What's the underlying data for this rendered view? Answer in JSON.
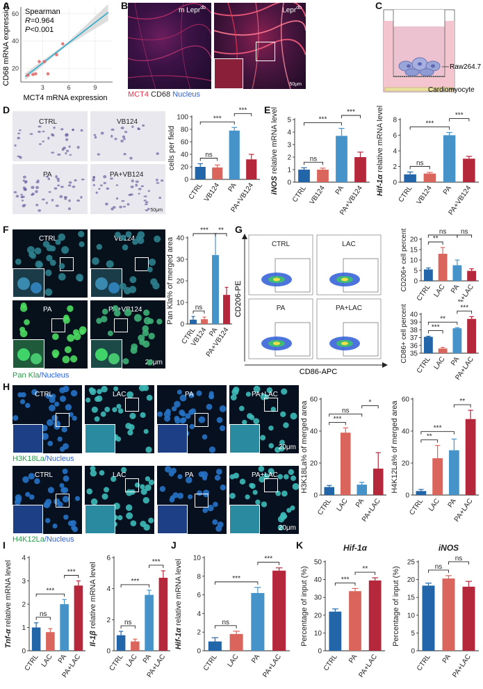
{
  "panels": {
    "A": {
      "letter": "A",
      "stat_name": "Spearman",
      "r_prefix": "R",
      "r_value": "=0.964",
      "p_prefix": "P",
      "p_value": "<0.001",
      "xlabel": "MCT4 mRNA expression",
      "ylabel": "CD68 mRNA expression"
    },
    "B": {
      "letter": "B",
      "left_label": "m Lepr",
      "left_sup": "db",
      "right_label": "Lepr",
      "right_sup": "db",
      "legend_red": "MCT4",
      "legend_white": "CD68",
      "legend_blue": "Nucleus",
      "scale": "50μm"
    },
    "C": {
      "letter": "C",
      "label_top": "Raw264.7",
      "label_bottom": "Cardiomyocyte"
    },
    "D": {
      "letter": "D",
      "img_labels": [
        "CTRL",
        "VB124",
        "PA",
        "PA+VB124"
      ],
      "scale": "50μm"
    },
    "E": {
      "letter": "E"
    },
    "F": {
      "letter": "F",
      "img_labels": [
        "CTRL",
        "VB124",
        "PA",
        "PA+VB124"
      ],
      "scale": "20μm",
      "legend_green": "Pan Kla",
      "legend_blue": "/Nucleus"
    },
    "G": {
      "letter": "G",
      "img_labels": [
        "CTRL",
        "LAC",
        "PA",
        "PA+LAC"
      ],
      "yaxis": "CD206-PE",
      "xaxis": "CD86-APC"
    },
    "H": {
      "letter": "H",
      "img_labels": [
        "CTRL",
        "LAC",
        "PA",
        "PA+LAC"
      ],
      "scale": "20μm",
      "legend1_green": "H3K18La",
      "legend1_blue": "/Nucleus",
      "legend2_green": "H4K12La",
      "legend2_blue": "/Nucleus"
    },
    "I": {
      "letter": "I"
    },
    "J": {
      "letter": "J"
    },
    "K": {
      "letter": "K"
    }
  },
  "colors": {
    "ctrl": "#2265a8",
    "treat1": "#d9655c",
    "drug": "#4593c9",
    "combo": "#b5273a",
    "fit": "#2aa9c9",
    "points": "#e06666",
    "green_stain": "#3fd36a",
    "nucleus": "#2a5fd8",
    "red_stain": "#e2334b"
  },
  "chart_data": [
    {
      "id": "A",
      "type": "scatter",
      "title": "",
      "xlabel": "MCT4 mRNA expression",
      "ylabel": "CD68 mRNA expression",
      "xticks": [
        "3",
        "6",
        "9"
      ],
      "yticks": [
        "20",
        "40",
        "60"
      ],
      "xlim": [
        0.5,
        11
      ],
      "ylim": [
        10,
        65
      ],
      "points": [
        {
          "x": 1.3,
          "y": 15
        },
        {
          "x": 1.9,
          "y": 15.5
        },
        {
          "x": 2.2,
          "y": 16
        },
        {
          "x": 2.6,
          "y": 25
        },
        {
          "x": 3.2,
          "y": 25
        },
        {
          "x": 3.6,
          "y": 16
        },
        {
          "x": 4.6,
          "y": 30
        },
        {
          "x": 5.3,
          "y": 38
        }
      ],
      "fit": [
        [
          1.0,
          14
        ],
        [
          10.5,
          61
        ]
      ],
      "annotations": [
        "Spearman",
        "R=0.964",
        "P<0.001"
      ]
    },
    {
      "id": "D",
      "type": "bar",
      "ylabel": "cells per field",
      "ylim": [
        0,
        100
      ],
      "yticks": [
        "0",
        "20",
        "40",
        "60",
        "80",
        "100"
      ],
      "categories": [
        "CTRL",
        "VB124",
        "PA",
        "PA+VB124"
      ],
      "values": [
        20,
        19,
        78,
        32
      ],
      "errors": [
        5,
        4,
        5,
        8
      ],
      "colors": [
        "#2265a8",
        "#d9655c",
        "#4593c9",
        "#b5273a"
      ],
      "significance": [
        {
          "a": 0,
          "b": 1,
          "label": "ns"
        },
        {
          "a": 0,
          "b": 2,
          "label": "***"
        },
        {
          "a": 2,
          "b": 3,
          "label": "***"
        }
      ]
    },
    {
      "id": "E1",
      "type": "bar",
      "ylabel": "iNOS relative mRNA level",
      "ylabel_italic": "iNOS",
      "ylabel_rest": " relative mRNA level",
      "ylim": [
        0,
        5
      ],
      "yticks": [
        "0",
        "1",
        "2",
        "3",
        "4",
        "5"
      ],
      "categories": [
        "CTRL",
        "VB124",
        "PA",
        "PA+VB124"
      ],
      "values": [
        1.0,
        1.0,
        3.7,
        2.0
      ],
      "errors": [
        0.15,
        0.12,
        0.6,
        0.4
      ],
      "colors": [
        "#2265a8",
        "#d9655c",
        "#4593c9",
        "#b5273a"
      ],
      "significance": [
        {
          "a": 0,
          "b": 1,
          "label": "ns"
        },
        {
          "a": 0,
          "b": 2,
          "label": "***"
        },
        {
          "a": 2,
          "b": 3,
          "label": "***"
        }
      ]
    },
    {
      "id": "E2",
      "type": "bar",
      "ylabel": "Hif-1α relative mRNA level",
      "ylabel_italic": "Hif-1α",
      "ylabel_rest": "  relative mRNA level",
      "ylim": [
        0,
        8
      ],
      "yticks": [
        "0",
        "2",
        "4",
        "6",
        "8"
      ],
      "categories": [
        "CTRL",
        "VB124",
        "PA",
        "PA+VB124"
      ],
      "values": [
        1.0,
        1.1,
        6.0,
        3.0
      ],
      "errors": [
        0.3,
        0.15,
        0.35,
        0.3
      ],
      "colors": [
        "#2265a8",
        "#d9655c",
        "#4593c9",
        "#b5273a"
      ],
      "significance": [
        {
          "a": 0,
          "b": 1,
          "label": "ns"
        },
        {
          "a": 0,
          "b": 2,
          "label": "***"
        },
        {
          "a": 2,
          "b": 3,
          "label": "***"
        }
      ]
    },
    {
      "id": "F",
      "type": "bar",
      "ylabel": "Pan Kla% of merged area",
      "ylim": [
        0,
        40
      ],
      "yticks": [
        "0",
        "10",
        "20",
        "30",
        "40"
      ],
      "categories": [
        "CTRL",
        "VB124",
        "PA",
        "PA+VB124"
      ],
      "values": [
        2.0,
        2.2,
        32,
        13.5
      ],
      "errors": [
        1.5,
        1.0,
        10,
        3.5
      ],
      "colors": [
        "#2265a8",
        "#d9655c",
        "#4593c9",
        "#b5273a"
      ],
      "significance": [
        {
          "a": 0,
          "b": 1,
          "label": "ns"
        },
        {
          "a": 0,
          "b": 2,
          "label": "***"
        },
        {
          "a": 2,
          "b": 3,
          "label": "**"
        }
      ]
    },
    {
      "id": "G1",
      "type": "bar",
      "ylabel": "CD206+ cell percent",
      "ylim": [
        0,
        20
      ],
      "yticks": [
        "0",
        "5",
        "10",
        "15",
        "20"
      ],
      "categories": [
        "CTRL",
        "LAC",
        "PA",
        "PA+LAC"
      ],
      "values": [
        5.5,
        13,
        7.5,
        4.8
      ],
      "errors": [
        0.7,
        3,
        2.5,
        1
      ],
      "colors": [
        "#2265a8",
        "#d9655c",
        "#4593c9",
        "#b5273a"
      ],
      "significance": [
        {
          "a": 0,
          "b": 1,
          "label": "**"
        },
        {
          "a": 0,
          "b": 2,
          "label": "ns"
        },
        {
          "a": 2,
          "b": 3,
          "label": "ns"
        }
      ]
    },
    {
      "id": "G2",
      "type": "bar",
      "ylabel": "CD86+ cell percent",
      "ylim": [
        35,
        40
      ],
      "yticks": [
        "35",
        "36",
        "37",
        "38",
        "39",
        "40"
      ],
      "categories": [
        "CTRL",
        "LAC",
        "PA",
        "PA+LAC"
      ],
      "values": [
        37.1,
        35.6,
        38.2,
        39.4
      ],
      "errors": [
        0.08,
        0.15,
        0.08,
        0.3
      ],
      "colors": [
        "#2265a8",
        "#d9655c",
        "#4593c9",
        "#b5273a"
      ],
      "significance": [
        {
          "a": 0,
          "b": 1,
          "label": "***"
        },
        {
          "a": 0,
          "b": 2,
          "label": "**"
        },
        {
          "a": 2,
          "b": 3,
          "label": "***"
        }
      ]
    },
    {
      "id": "H1",
      "type": "bar",
      "ylabel": "H3K18La% of merged area",
      "ylim": [
        0,
        60
      ],
      "yticks": [
        "0",
        "20",
        "40",
        "60"
      ],
      "categories": [
        "CTRL",
        "LAC",
        "PA",
        "PA+LAC"
      ],
      "values": [
        5,
        39,
        6.5,
        16.5
      ],
      "errors": [
        1,
        3,
        1.5,
        10
      ],
      "colors": [
        "#2265a8",
        "#d9655c",
        "#4593c9",
        "#b5273a"
      ],
      "significance": [
        {
          "a": 0,
          "b": 1,
          "label": "***"
        },
        {
          "a": 0,
          "b": 2,
          "label": "ns"
        },
        {
          "a": 2,
          "b": 3,
          "label": "*"
        }
      ]
    },
    {
      "id": "H2",
      "type": "bar",
      "ylabel": "H4K12La% of merged area",
      "ylim": [
        0,
        60
      ],
      "yticks": [
        "0",
        "20",
        "40",
        "60"
      ],
      "categories": [
        "CTRL",
        "LAC",
        "PA",
        "PA+LAC"
      ],
      "values": [
        2.5,
        23,
        28,
        47.5
      ],
      "errors": [
        1,
        8,
        7,
        5.5
      ],
      "colors": [
        "#2265a8",
        "#d9655c",
        "#4593c9",
        "#b5273a"
      ],
      "significance": [
        {
          "a": 0,
          "b": 1,
          "label": "**"
        },
        {
          "a": 0,
          "b": 2,
          "label": "***"
        },
        {
          "a": 2,
          "b": 3,
          "label": "**"
        }
      ]
    },
    {
      "id": "I1",
      "type": "bar",
      "ylabel": "Tnf-α relative mRNA level",
      "ylabel_italic": "Tnf-α",
      "ylabel_rest": "  relative mRNA level",
      "ylim": [
        0,
        4
      ],
      "yticks": [
        "0",
        "1",
        "2",
        "3",
        "4"
      ],
      "categories": [
        "CTRL",
        "LAC",
        "PA",
        "PA+LAC"
      ],
      "values": [
        1.0,
        0.8,
        2.0,
        2.8
      ],
      "errors": [
        0.2,
        0.15,
        0.2,
        0.2
      ],
      "colors": [
        "#2265a8",
        "#d9655c",
        "#4593c9",
        "#b5273a"
      ],
      "significance": [
        {
          "a": 0,
          "b": 1,
          "label": "ns"
        },
        {
          "a": 0,
          "b": 2,
          "label": "***"
        },
        {
          "a": 2,
          "b": 3,
          "label": "***"
        }
      ]
    },
    {
      "id": "I2",
      "type": "bar",
      "ylabel": "Il-1β relative mRNA level",
      "ylabel_italic": "Il-1β",
      "ylabel_rest": " relative mRNA level",
      "ylim": [
        0,
        6
      ],
      "yticks": [
        "0",
        "2",
        "4",
        "6"
      ],
      "categories": [
        "CTRL",
        "LAC",
        "PA",
        "PA+LAC"
      ],
      "values": [
        1.0,
        0.6,
        3.6,
        4.7
      ],
      "errors": [
        0.25,
        0.15,
        0.3,
        0.45
      ],
      "colors": [
        "#2265a8",
        "#d9655c",
        "#4593c9",
        "#b5273a"
      ],
      "significance": [
        {
          "a": 0,
          "b": 1,
          "label": "ns"
        },
        {
          "a": 0,
          "b": 2,
          "label": "***"
        },
        {
          "a": 2,
          "b": 3,
          "label": "***"
        }
      ]
    },
    {
      "id": "J",
      "type": "bar",
      "ylabel": "Hif-1α relative mRNA level",
      "ylabel_italic": "Hif-1α",
      "ylabel_rest": "  relative mRNA level",
      "ylim": [
        0,
        10
      ],
      "yticks": [
        "0",
        "2",
        "4",
        "6",
        "8",
        "10"
      ],
      "categories": [
        "CTRL",
        "LAC",
        "PA",
        "PA+LAC"
      ],
      "values": [
        1.0,
        1.8,
        6.2,
        8.6
      ],
      "errors": [
        0.4,
        0.3,
        0.6,
        0.3
      ],
      "colors": [
        "#2265a8",
        "#d9655c",
        "#4593c9",
        "#b5273a"
      ],
      "significance": [
        {
          "a": 0,
          "b": 1,
          "label": "ns"
        },
        {
          "a": 0,
          "b": 2,
          "label": "***"
        },
        {
          "a": 2,
          "b": 3,
          "label": "***"
        }
      ]
    },
    {
      "id": "K1",
      "type": "bar",
      "title": "Hif-1α",
      "ylabel": "Percentage of input (%)",
      "ylim": [
        0,
        50
      ],
      "yticks": [
        "0",
        "10",
        "20",
        "30",
        "40",
        "50"
      ],
      "categories": [
        "CTRL",
        "PA",
        "PA+LAC"
      ],
      "values": [
        22,
        33.5,
        39.5
      ],
      "errors": [
        1.5,
        1.5,
        1.5
      ],
      "colors": [
        "#2265a8",
        "#d9655c",
        "#b5273a"
      ],
      "significance": [
        {
          "a": 0,
          "b": 1,
          "label": "***"
        },
        {
          "a": 1,
          "b": 2,
          "label": "**"
        }
      ]
    },
    {
      "id": "K2",
      "type": "bar",
      "title": "iNOS",
      "ylabel": "Percentage of input (%)",
      "ylim": [
        0,
        25
      ],
      "yticks": [
        "0",
        "5",
        "10",
        "15",
        "20",
        "25"
      ],
      "categories": [
        "CTRL",
        "PA",
        "PA+LAC"
      ],
      "values": [
        18.3,
        20.3,
        18.0
      ],
      "errors": [
        0.7,
        0.8,
        1.5
      ],
      "colors": [
        "#2265a8",
        "#d9655c",
        "#b5273a"
      ],
      "significance": [
        {
          "a": 0,
          "b": 1,
          "label": "ns"
        },
        {
          "a": 1,
          "b": 2,
          "label": "ns"
        }
      ]
    }
  ]
}
